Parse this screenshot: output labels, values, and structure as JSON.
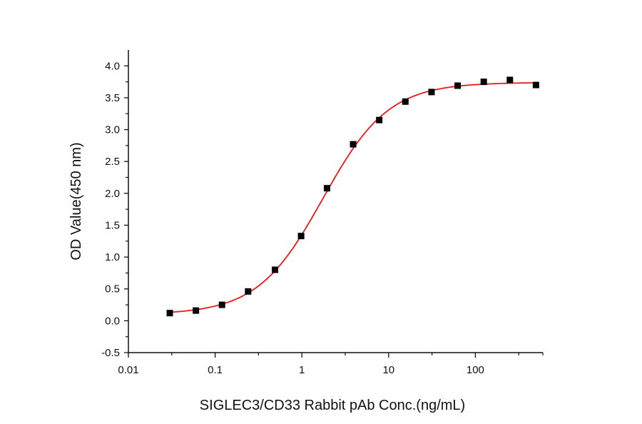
{
  "chart_data": {
    "type": "scatter",
    "title": "",
    "xlabel": "SIGLEC3/CD33 Rabbit pAb Conc.(ng/mL)",
    "ylabel": "OD Value(450 nm)",
    "x_scale": "log",
    "xlim": [
      0.01,
      600
    ],
    "ylim": [
      -0.5,
      4.25
    ],
    "x_ticks": [
      "0.01",
      "0.1",
      "1",
      "10",
      "100"
    ],
    "y_ticks": [
      "-0.5",
      "0.0",
      "0.5",
      "1.0",
      "1.5",
      "2.0",
      "2.5",
      "3.0",
      "3.5",
      "4.0"
    ],
    "grid": false,
    "legend": "none",
    "series": [
      {
        "marker": "square",
        "color": "#000000",
        "x": [
          0.03,
          0.06,
          0.12,
          0.24,
          0.49,
          0.98,
          1.95,
          3.9,
          7.8,
          15.6,
          31.25,
          62.5,
          125,
          250,
          500
        ],
        "y": [
          0.12,
          0.16,
          0.25,
          0.46,
          0.8,
          1.33,
          2.08,
          2.77,
          3.15,
          3.44,
          3.59,
          3.69,
          3.75,
          3.78,
          3.7
        ]
      }
    ],
    "fit_curve": {
      "model": "4PL",
      "color": "#e8191c",
      "bottom": 0.1,
      "top": 3.74,
      "ec50": 1.75,
      "hill": 1.15,
      "x_range": [
        0.03,
        500
      ]
    }
  }
}
